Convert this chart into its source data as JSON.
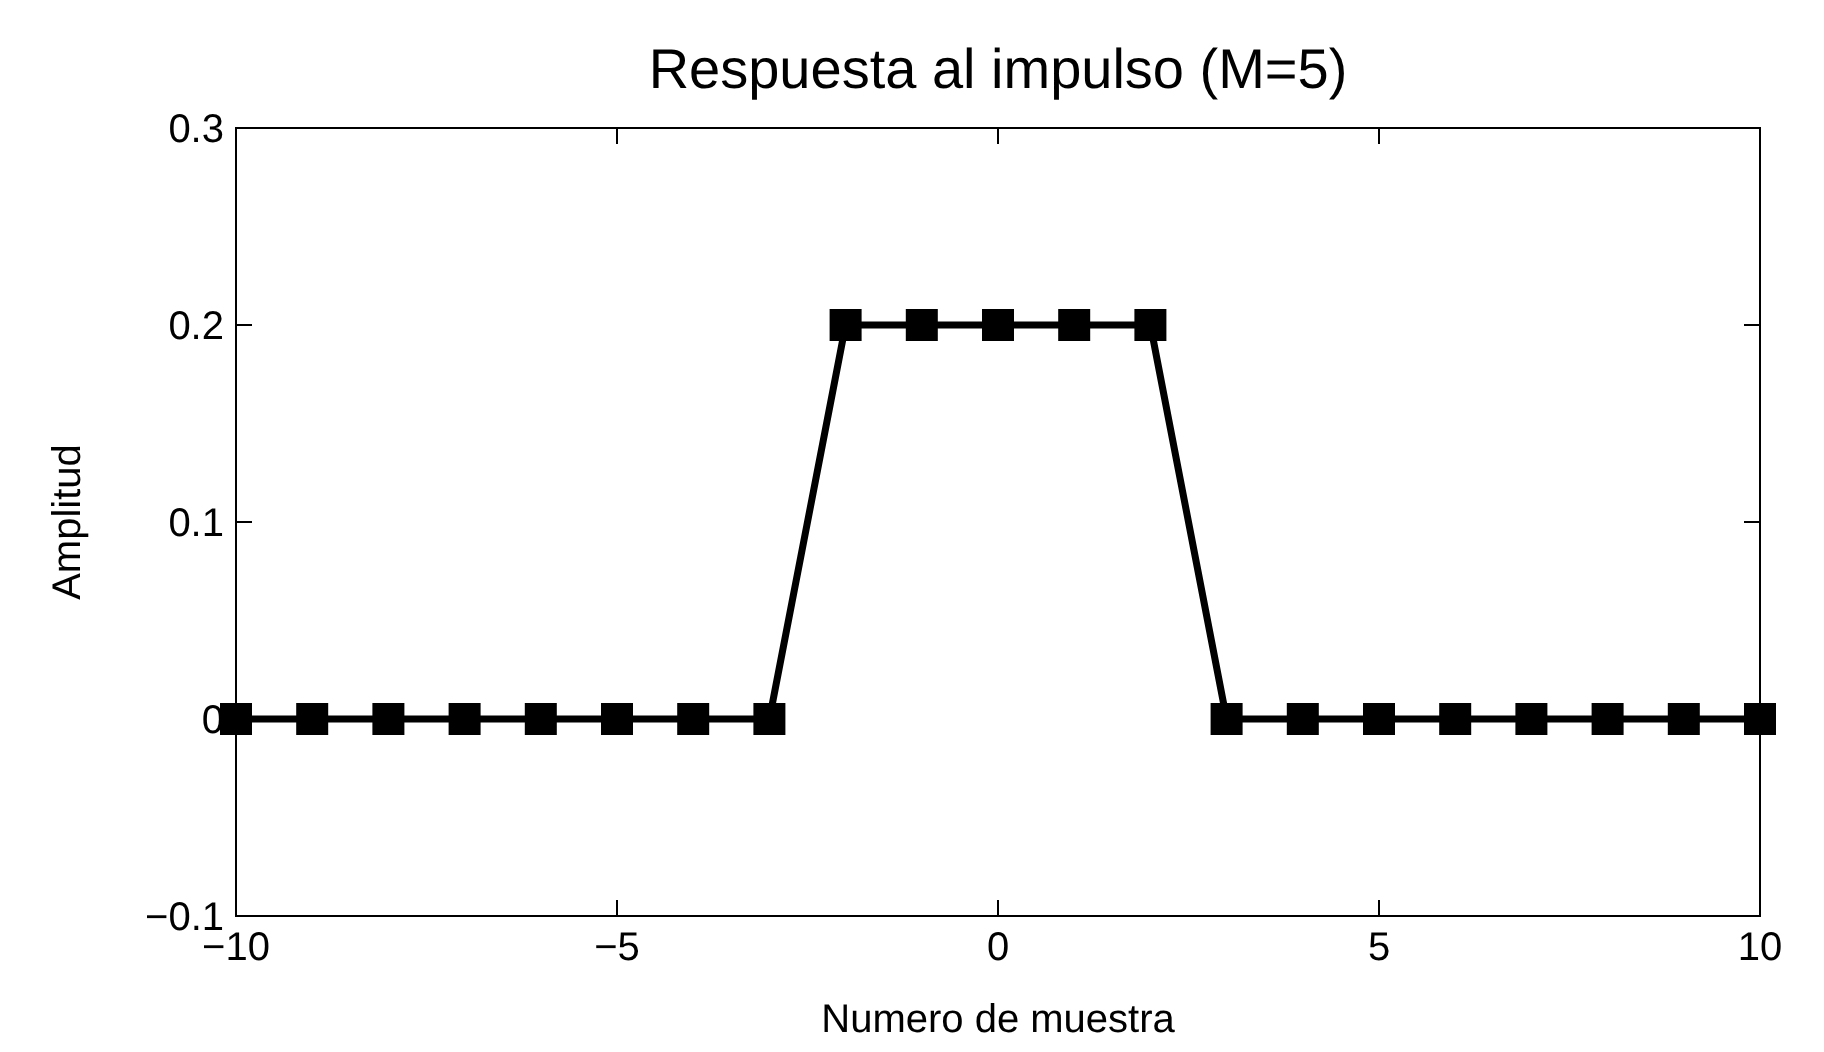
{
  "chart_data": {
    "type": "line",
    "title": "Respuesta al impulso (M=5)",
    "xlabel": "Numero de muestra",
    "ylabel": "Amplitud",
    "x": [
      -10,
      -9,
      -8,
      -7,
      -6,
      -5,
      -4,
      -3,
      -2,
      -1,
      0,
      1,
      2,
      3,
      4,
      5,
      6,
      7,
      8,
      9,
      10
    ],
    "series": [
      {
        "color": "#000000",
        "values": [
          0,
          0,
          0,
          0,
          0,
          0,
          0,
          0,
          0.2,
          0.2,
          0.2,
          0.2,
          0.2,
          0,
          0,
          0,
          0,
          0,
          0,
          0,
          0
        ]
      }
    ],
    "xlim": [
      -10,
      10
    ],
    "ylim": [
      -0.1,
      0.3
    ],
    "xticks": [
      {
        "value": -10,
        "label": "−10"
      },
      {
        "value": -5,
        "label": "−5"
      },
      0,
      5,
      10
    ],
    "yticks": [
      {
        "value": -0.1,
        "label": "−0.1"
      },
      0,
      0.1,
      0.2,
      0.3
    ],
    "marker": "square",
    "line_style": "solid"
  }
}
